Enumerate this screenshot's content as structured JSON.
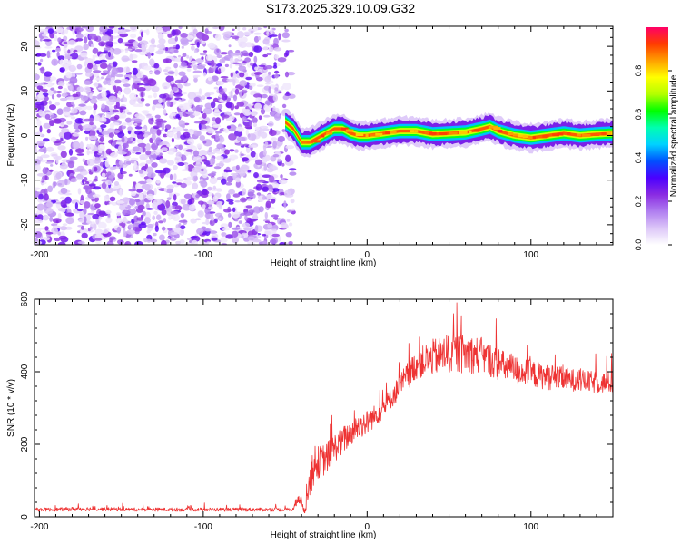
{
  "figure": {
    "title": "S173.2025.329.10.09.G32"
  },
  "colors": {
    "snr_line": "#ee3333",
    "cmap": [
      "#ffffff",
      "#dcc6f8",
      "#b07ef0",
      "#8a2be2",
      "#4b00ff",
      "#0050ff",
      "#00d2ff",
      "#00ffb0",
      "#00ff00",
      "#b4ff00",
      "#ffff00",
      "#ffa000",
      "#ff3c00",
      "#ff0066"
    ]
  },
  "chart_data": [
    {
      "type": "heatmap",
      "title": "S173.2025.329.10.09.G32",
      "xlabel": "Height of straight line (km)",
      "ylabel": "Frequency (Hz)",
      "xlim": [
        -203,
        150
      ],
      "ylim": [
        -24.5,
        24.5
      ],
      "xticks": [
        -200,
        -100,
        0,
        100
      ],
      "yticks": [
        -20,
        -10,
        0,
        10,
        20
      ],
      "colorbar": {
        "label": "Normalized spectral amplitude",
        "lim": [
          0,
          1
        ],
        "ticks": [
          0.0,
          0.2,
          0.4,
          0.6,
          0.8
        ]
      },
      "noise_region": {
        "x": [
          -203,
          -45
        ],
        "level": "low (0.0-0.15)"
      },
      "signal_trace": {
        "x": [
          -50,
          -45,
          -40,
          -35,
          -30,
          -25,
          -20,
          -15,
          -10,
          -5,
          0,
          10,
          20,
          30,
          40,
          50,
          60,
          70,
          75,
          80,
          90,
          100,
          110,
          120,
          130,
          140,
          150
        ],
        "freq_hz": [
          3,
          1.5,
          -1.5,
          -1.5,
          -0.5,
          0.5,
          1.5,
          1.5,
          0.5,
          0,
          0,
          0.5,
          1,
          1,
          0.3,
          0.5,
          0.7,
          1.5,
          2,
          1,
          0,
          -0.5,
          0,
          0.5,
          0,
          0.3,
          0.5
        ],
        "peak_amplitude": 0.9
      }
    },
    {
      "type": "line",
      "xlabel": "Height of straight line (km)",
      "ylabel": "SNR (10 * v/v)",
      "xlim": [
        -203,
        150
      ],
      "ylim": [
        0,
        600
      ],
      "xticks": [
        -200,
        -100,
        0,
        100
      ],
      "yticks": [
        0,
        200,
        400,
        600
      ],
      "series": [
        {
          "name": "SNR",
          "x": [
            -203,
            -190,
            -175,
            -160,
            -140,
            -120,
            -100,
            -80,
            -60,
            -45,
            -42,
            -38,
            -35,
            -30,
            -25,
            -20,
            -15,
            -10,
            -5,
            0,
            5,
            10,
            15,
            20,
            25,
            30,
            40,
            50,
            60,
            70,
            80,
            90,
            100,
            110,
            120,
            130,
            140,
            150
          ],
          "y": [
            20,
            20,
            22,
            21,
            20,
            20,
            20,
            20,
            20,
            20,
            60,
            15,
            100,
            150,
            160,
            190,
            210,
            230,
            250,
            260,
            280,
            300,
            330,
            360,
            390,
            420,
            440,
            450,
            450,
            445,
            420,
            405,
            395,
            385,
            380,
            375,
            370,
            370
          ],
          "spread": [
            10,
            10,
            12,
            10,
            10,
            10,
            10,
            10,
            10,
            10,
            40,
            20,
            80,
            90,
            90,
            80,
            80,
            70,
            70,
            70,
            60,
            60,
            60,
            70,
            80,
            80,
            100,
            110,
            110,
            100,
            90,
            80,
            75,
            70,
            65,
            60,
            60,
            60
          ]
        }
      ]
    }
  ]
}
